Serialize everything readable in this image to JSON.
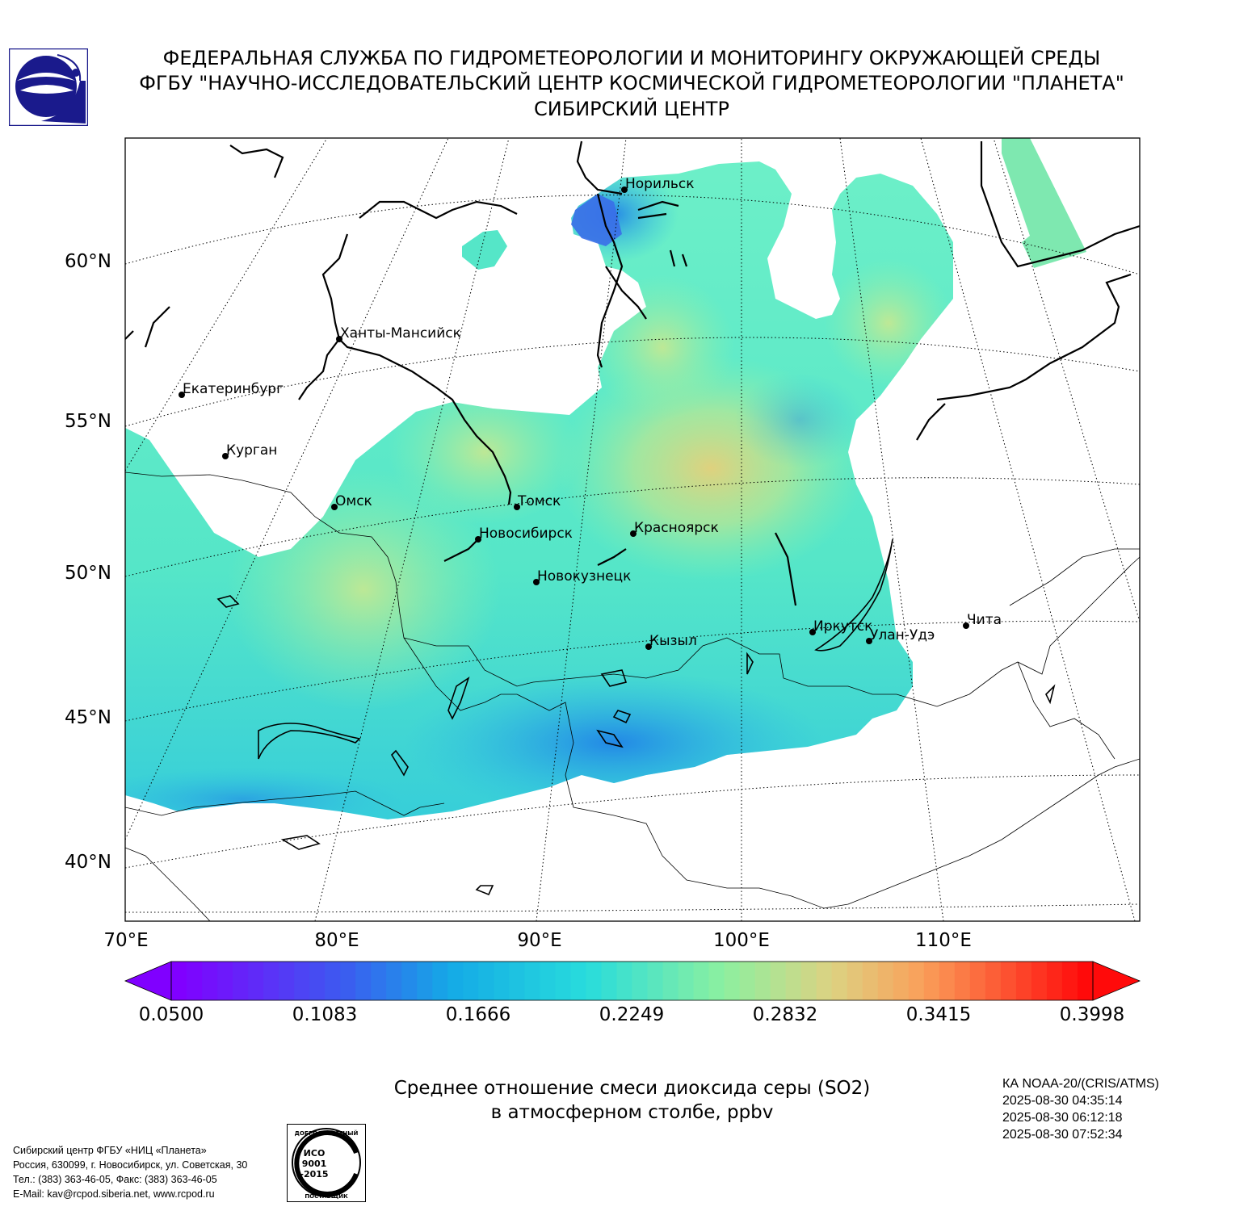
{
  "header": {
    "line1": "ФЕДЕРАЛЬНАЯ СЛУЖБА ПО ГИДРОМЕТЕОРОЛОГИИ И МОНИТОРИНГУ ОКРУЖАЮЩЕЙ СРЕДЫ",
    "line2": "ФГБУ \"НАУЧНО-ИССЛЕДОВАТЕЛЬСКИЙ ЦЕНТР КОСМИЧЕСКОЙ ГИДРОМЕТЕОРОЛОГИИ \"ПЛАНЕТА\"",
    "line3": "СИБИРСКИЙ ЦЕНТР"
  },
  "map": {
    "lat_labels": [
      "60°N",
      "55°N",
      "50°N",
      "45°N",
      "40°N"
    ],
    "lon_labels": [
      "70°E",
      "80°E",
      "90°E",
      "100°E",
      "110°E"
    ],
    "cities": [
      "Норильск",
      "Ханты-Мансийск",
      "Екатеринбург",
      "Курган",
      "Омск",
      "Томск",
      "Новосибирск",
      "Красноярск",
      "Новокузнецк",
      "Иркутск",
      "Улан-Удэ",
      "Чита",
      "Кызыл"
    ]
  },
  "colorbar": {
    "ticks": [
      "0.0500",
      "0.1083",
      "0.1666",
      "0.2249",
      "0.2832",
      "0.3415",
      "0.3998"
    ]
  },
  "caption": {
    "line1": "Среднее отношение смеси диоксида серы (SO2)",
    "line2": "в атмосферном столбе, ppbv"
  },
  "satellite": {
    "name": "КА NOAA-20/(CRIS/ATMS)",
    "times": [
      "2025-08-30 04:35:14",
      "2025-08-30 06:12:18",
      "2025-08-30 07:52:34"
    ]
  },
  "contacts": {
    "line1": "Сибирский центр ФГБУ «НИЦ «Планета»",
    "line2": "Россия, 630099, г. Новосибирск, ул. Советская, 30",
    "line3": "Тел.: (383) 363-46-05, Факс: (383) 363-46-05",
    "line4": "E-Mail: kav@rcpod.siberia.net, www.rcpod.ru"
  },
  "iso_stamp": {
    "top": "ДОБРОСОВЕСТНЫЙ",
    "bottom": "ПОСТАВЩИК",
    "l1": "ИСО",
    "l2": "9001",
    "l3": "-2015"
  },
  "colors": {
    "dark_blue": "#1a1a8c",
    "field_low": "#1f8fe8",
    "field_mid": "#3de6c0",
    "field_high": "#e0d27a"
  }
}
